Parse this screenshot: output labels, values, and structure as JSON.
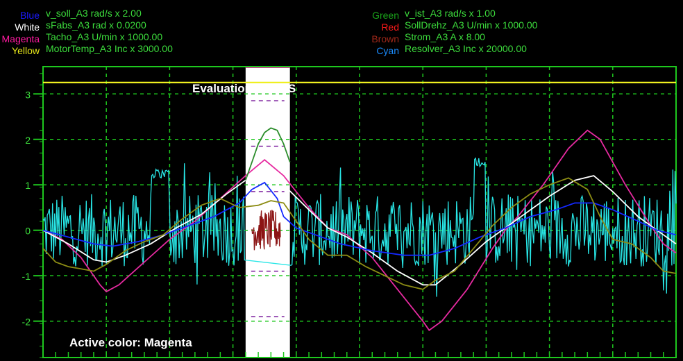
{
  "legend": {
    "left": [
      {
        "color_name": "Blue",
        "color": "#1a1aff",
        "label": "v_soll_A3 rad/s x 2.00"
      },
      {
        "color_name": "White",
        "color": "#ffffff",
        "label": "sFabs_A3 rad x 0.0200"
      },
      {
        "color_name": "Magenta",
        "color": "#ff1aa0",
        "label": "Tacho_A3 U/min x 1000.00"
      },
      {
        "color_name": "Yellow",
        "color": "#e8e81a",
        "label": "MotorTemp_A3 Inc x 3000.00"
      }
    ],
    "right": [
      {
        "color_name": "Green",
        "color": "#1aa51a",
        "label": "v_ist_A3 rad/s x 1.00"
      },
      {
        "color_name": "Red",
        "color": "#ff1a1a",
        "label": "SollDrehz_A3 U/min x 1000.00"
      },
      {
        "color_name": "Brown",
        "color": "#a0281a",
        "label": "Strom_A3 A x 8.00"
      },
      {
        "color_name": "Cyan",
        "color": "#1a8cff",
        "label": "Resolver_A3 Inc x 20000.00"
      }
    ]
  },
  "annotation": {
    "rms_label": "Evaluation of RMS",
    "active_color": "Active color: Magenta"
  },
  "colors": {
    "background": "#000000",
    "grid": "#1ec81e",
    "label_green": "#3cdc3c",
    "highlight": "#ffffff",
    "blue": "#1428ff",
    "white": "#ffffff",
    "magenta": "#e62aa0",
    "yellow": "#f0f020",
    "green": "#2a8c2a",
    "brown": "#8c1414",
    "cyan": "#28e6e6",
    "olive": "#8c8c14"
  },
  "chart_data": {
    "type": "line",
    "ylim": [
      -2.8,
      3.6
    ],
    "xlim": [
      0,
      100
    ],
    "yticks": [
      "3",
      "2",
      "1",
      "0",
      "-1",
      "-2"
    ],
    "ytick_values": [
      3,
      2,
      1,
      0,
      -1,
      -2
    ],
    "grid": true,
    "rms_window": [
      32,
      39
    ],
    "series": [
      {
        "name": "Yellow",
        "color_key": "yellow",
        "points": [
          [
            0,
            3.25
          ],
          [
            100,
            3.25
          ]
        ]
      },
      {
        "name": "Magenta",
        "color_key": "magenta",
        "points": [
          [
            0,
            0.0
          ],
          [
            3,
            -0.2
          ],
          [
            6,
            -0.6
          ],
          [
            9,
            -1.2
          ],
          [
            10,
            -1.35
          ],
          [
            12,
            -1.2
          ],
          [
            16,
            -0.7
          ],
          [
            20,
            -0.2
          ],
          [
            24,
            0.2
          ],
          [
            28,
            0.7
          ],
          [
            32,
            1.2
          ],
          [
            35,
            1.55
          ],
          [
            38,
            1.2
          ],
          [
            42,
            0.5
          ],
          [
            45,
            0.05
          ],
          [
            48,
            -0.1
          ],
          [
            52,
            -0.6
          ],
          [
            56,
            -1.3
          ],
          [
            60,
            -2.0
          ],
          [
            61,
            -2.2
          ],
          [
            63,
            -2.0
          ],
          [
            67,
            -1.3
          ],
          [
            71,
            -0.4
          ],
          [
            73,
            0.0
          ],
          [
            75,
            0.3
          ],
          [
            79,
            1.0
          ],
          [
            83,
            1.8
          ],
          [
            86,
            2.2
          ],
          [
            88,
            2.0
          ],
          [
            92,
            1.0
          ],
          [
            96,
            0.1
          ],
          [
            98,
            -0.3
          ],
          [
            100,
            -0.5
          ]
        ]
      },
      {
        "name": "White",
        "color_key": "white",
        "points": [
          [
            0,
            0.0
          ],
          [
            4,
            -0.3
          ],
          [
            8,
            -0.65
          ],
          [
            10,
            -0.7
          ],
          [
            13,
            -0.55
          ],
          [
            17,
            -0.3
          ],
          [
            21,
            0.05
          ],
          [
            25,
            0.35
          ],
          [
            29,
            0.8
          ],
          [
            32,
            1.1
          ],
          [
            35,
            1.2
          ],
          [
            38,
            1.0
          ],
          [
            42,
            0.45
          ],
          [
            45,
            0.05
          ],
          [
            48,
            -0.15
          ],
          [
            52,
            -0.5
          ],
          [
            56,
            -0.9
          ],
          [
            60,
            -1.2
          ],
          [
            62,
            -1.2
          ],
          [
            66,
            -0.75
          ],
          [
            70,
            -0.25
          ],
          [
            73,
            0.05
          ],
          [
            76,
            0.35
          ],
          [
            80,
            0.75
          ],
          [
            84,
            1.1
          ],
          [
            87,
            1.2
          ],
          [
            90,
            0.85
          ],
          [
            94,
            0.3
          ],
          [
            97,
            0.0
          ],
          [
            100,
            -0.3
          ]
        ]
      },
      {
        "name": "Blue",
        "color_key": "blue",
        "points": [
          [
            0,
            0.0
          ],
          [
            4,
            -0.15
          ],
          [
            8,
            -0.3
          ],
          [
            11,
            -0.35
          ],
          [
            15,
            -0.25
          ],
          [
            19,
            -0.1
          ],
          [
            23,
            0.1
          ],
          [
            27,
            0.3
          ],
          [
            31,
            0.6
          ],
          [
            33,
            0.9
          ],
          [
            35,
            1.05
          ],
          [
            37,
            0.7
          ],
          [
            38,
            0.3
          ],
          [
            40,
            0.05
          ],
          [
            43,
            -0.1
          ],
          [
            47,
            -0.3
          ],
          [
            52,
            -0.45
          ],
          [
            57,
            -0.55
          ],
          [
            61,
            -0.55
          ],
          [
            65,
            -0.4
          ],
          [
            69,
            -0.15
          ],
          [
            73,
            0.05
          ],
          [
            77,
            0.3
          ],
          [
            81,
            0.45
          ],
          [
            84,
            0.6
          ],
          [
            87,
            0.6
          ],
          [
            90,
            0.45
          ],
          [
            94,
            0.2
          ],
          [
            97,
            0.0
          ],
          [
            100,
            -0.1
          ]
        ]
      },
      {
        "name": "Green",
        "color_key": "green",
        "points": [
          [
            32,
            1.1
          ],
          [
            33,
            1.5
          ],
          [
            34,
            1.9
          ],
          [
            35,
            2.15
          ],
          [
            36,
            2.25
          ],
          [
            37,
            2.2
          ],
          [
            38,
            1.9
          ],
          [
            39,
            1.5
          ]
        ]
      },
      {
        "name": "Olive",
        "color_key": "olive",
        "points": [
          [
            0,
            -0.4
          ],
          [
            2,
            -0.7
          ],
          [
            4,
            -0.8
          ],
          [
            6,
            -0.85
          ],
          [
            8,
            -0.9
          ],
          [
            10,
            -0.75
          ],
          [
            13,
            -0.45
          ],
          [
            16,
            -0.25
          ],
          [
            19,
            -0.1
          ],
          [
            22,
            0.25
          ],
          [
            25,
            0.55
          ],
          [
            28,
            0.7
          ],
          [
            31,
            0.5
          ],
          [
            34,
            0.55
          ],
          [
            36,
            0.65
          ],
          [
            38,
            0.6
          ],
          [
            40,
            0.2
          ],
          [
            42,
            -0.2
          ],
          [
            45,
            -0.55
          ],
          [
            48,
            -0.55
          ],
          [
            51,
            -0.8
          ],
          [
            54,
            -1.0
          ],
          [
            57,
            -1.2
          ],
          [
            60,
            -1.3
          ],
          [
            62,
            -1.1
          ],
          [
            65,
            -0.9
          ],
          [
            68,
            -0.4
          ],
          [
            71,
            0.1
          ],
          [
            74,
            0.5
          ],
          [
            77,
            0.8
          ],
          [
            80,
            1.0
          ],
          [
            83,
            1.15
          ],
          [
            86,
            0.9
          ],
          [
            88,
            0.3
          ],
          [
            90,
            -0.2
          ],
          [
            93,
            -0.3
          ],
          [
            96,
            -0.6
          ],
          [
            98,
            -0.9
          ],
          [
            100,
            -0.95
          ]
        ]
      }
    ]
  }
}
